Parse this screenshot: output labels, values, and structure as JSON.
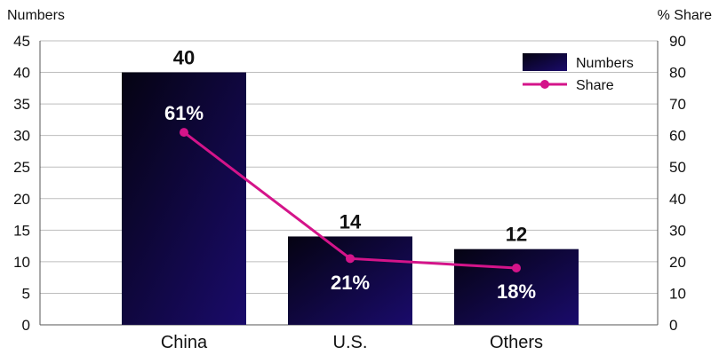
{
  "chart_data": {
    "type": "bar",
    "categories": [
      "China",
      "U.S.",
      "Others"
    ],
    "series": [
      {
        "name": "Numbers",
        "type": "bar",
        "axis": "left",
        "values": [
          40,
          14,
          12
        ],
        "color": "#1a0b6b"
      },
      {
        "name": "Share",
        "type": "line",
        "axis": "right",
        "values": [
          61,
          21,
          18
        ],
        "color": "#d4148a"
      }
    ],
    "bar_data_labels": [
      "40",
      "14",
      "12"
    ],
    "line_data_labels": [
      "61%",
      "21%",
      "18%"
    ],
    "ylabel": "Numbers",
    "y2label": "% Share",
    "ylim": [
      0,
      45
    ],
    "y2lim": [
      0,
      90
    ],
    "yticks": [
      0,
      5,
      10,
      15,
      20,
      25,
      30,
      35,
      40,
      45
    ],
    "y2ticks": [
      0,
      10,
      20,
      30,
      40,
      50,
      60,
      70,
      80,
      90
    ],
    "grid": true,
    "legend": {
      "placement": "top-right",
      "entries": [
        "Numbers",
        "Share"
      ]
    }
  }
}
